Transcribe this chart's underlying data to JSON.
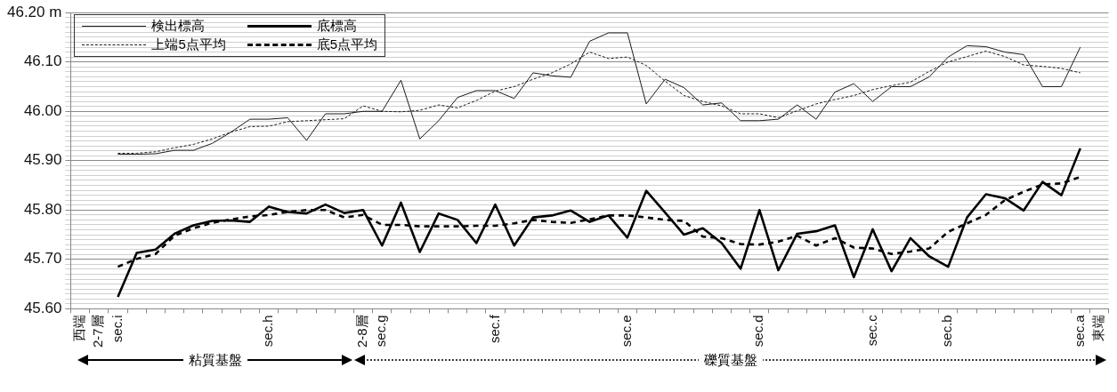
{
  "chart_data": {
    "type": "line",
    "categories": [
      "西端",
      "2-7層",
      "sec.i",
      null,
      null,
      null,
      null,
      null,
      null,
      null,
      "sec.h",
      null,
      null,
      null,
      null,
      "2-8層",
      "sec.g",
      null,
      null,
      null,
      null,
      null,
      "sec.f",
      null,
      null,
      null,
      null,
      null,
      null,
      "sec.e",
      null,
      null,
      null,
      null,
      null,
      null,
      "sec.d",
      null,
      null,
      null,
      null,
      null,
      "sec.c",
      null,
      null,
      null,
      "sec.b",
      null,
      null,
      null,
      null,
      null,
      null,
      "sec.a",
      "東端"
    ],
    "series": [
      {
        "name": "検出標高",
        "color": "#1a1a1a",
        "line_style": "solid",
        "values": [
          null,
          null,
          45.913,
          45.913,
          45.914,
          45.921,
          45.921,
          45.935,
          45.958,
          45.984,
          45.984,
          45.987,
          45.941,
          45.995,
          45.995,
          46.0,
          46.0,
          46.063,
          45.944,
          45.981,
          46.028,
          46.042,
          46.042,
          46.026,
          46.078,
          46.072,
          46.069,
          46.142,
          46.159,
          46.159,
          46.015,
          46.065,
          46.048,
          46.013,
          46.017,
          45.981,
          45.981,
          45.984,
          46.013,
          45.984,
          46.039,
          46.056,
          46.02,
          46.05,
          46.05,
          46.07,
          46.11,
          46.133,
          46.131,
          46.12,
          46.115,
          46.05,
          46.05,
          46.13,
          null
        ]
      },
      {
        "name": "底標高",
        "color": "#000000",
        "line_style": "solid",
        "values": [
          null,
          null,
          45.624,
          45.713,
          45.72,
          45.752,
          45.769,
          45.778,
          45.779,
          45.776,
          45.807,
          45.796,
          45.793,
          45.811,
          45.794,
          45.8,
          45.728,
          45.815,
          45.715,
          45.793,
          45.78,
          45.733,
          45.811,
          45.728,
          45.785,
          45.789,
          45.799,
          45.776,
          45.789,
          45.744,
          45.839,
          45.795,
          45.75,
          45.763,
          45.733,
          45.681,
          45.8,
          45.678,
          45.752,
          45.757,
          45.769,
          45.664,
          45.761,
          45.676,
          45.743,
          45.706,
          45.685,
          45.785,
          45.832,
          45.824,
          45.799,
          45.857,
          45.83,
          45.925,
          null
        ]
      },
      {
        "name": "上端5点平均",
        "color": "#1a1a1a",
        "line_style": "dashed",
        "values": [
          null,
          null,
          45.915,
          45.915,
          45.918,
          45.926,
          45.933,
          45.944,
          45.958,
          45.969,
          45.97,
          45.979,
          45.981,
          45.983,
          45.985,
          46.011,
          46.0,
          45.999,
          46.002,
          46.013,
          46.007,
          46.022,
          46.041,
          46.05,
          46.065,
          46.078,
          46.096,
          46.12,
          46.107,
          46.11,
          46.093,
          46.061,
          46.032,
          46.02,
          46.011,
          45.995,
          45.995,
          45.987,
          46.001,
          46.015,
          46.024,
          46.032,
          46.044,
          46.052,
          46.059,
          46.081,
          46.1,
          46.111,
          46.122,
          46.111,
          46.094,
          46.091,
          46.087,
          46.078,
          null
        ]
      },
      {
        "name": "底5点平均",
        "color": "#000000",
        "line_style": "dashed",
        "values": [
          null,
          null,
          45.685,
          45.701,
          45.711,
          45.748,
          45.763,
          45.774,
          45.781,
          45.787,
          45.79,
          45.796,
          45.8,
          45.8,
          45.785,
          45.79,
          45.77,
          45.77,
          45.767,
          45.767,
          45.767,
          45.768,
          45.768,
          45.773,
          45.78,
          45.776,
          45.774,
          45.781,
          45.789,
          45.789,
          45.785,
          45.78,
          45.778,
          45.746,
          45.743,
          45.731,
          45.73,
          45.736,
          45.748,
          45.728,
          45.743,
          45.724,
          45.722,
          45.711,
          45.716,
          45.722,
          45.756,
          45.773,
          45.79,
          45.82,
          45.837,
          45.852,
          45.854,
          45.867,
          null
        ]
      }
    ],
    "ylim": [
      45.6,
      46.2
    ],
    "yticks": [
      {
        "value": 45.6,
        "label": "45.60"
      },
      {
        "value": 45.61,
        "label": null
      },
      {
        "value": 45.62,
        "label": null
      },
      {
        "value": 45.63,
        "label": null
      },
      {
        "value": 45.64,
        "label": null
      },
      {
        "value": 45.65,
        "label": null
      },
      {
        "value": 45.66,
        "label": null
      },
      {
        "value": 45.67,
        "label": null
      },
      {
        "value": 45.68,
        "label": null
      },
      {
        "value": 45.69,
        "label": null
      },
      {
        "value": 45.7,
        "label": "45.70"
      },
      {
        "value": 45.71,
        "label": null
      },
      {
        "value": 45.72,
        "label": null
      },
      {
        "value": 45.73,
        "label": null
      },
      {
        "value": 45.74,
        "label": null
      },
      {
        "value": 45.75,
        "label": null
      },
      {
        "value": 45.76,
        "label": null
      },
      {
        "value": 45.77,
        "label": null
      },
      {
        "value": 45.78,
        "label": null
      },
      {
        "value": 45.79,
        "label": null
      },
      {
        "value": 45.8,
        "label": "45.80"
      },
      {
        "value": 45.81,
        "label": null
      },
      {
        "value": 45.82,
        "label": null
      },
      {
        "value": 45.83,
        "label": null
      },
      {
        "value": 45.84,
        "label": null
      },
      {
        "value": 45.85,
        "label": null
      },
      {
        "value": 45.86,
        "label": null
      },
      {
        "value": 45.87,
        "label": null
      },
      {
        "value": 45.88,
        "label": null
      },
      {
        "value": 45.89,
        "label": null
      },
      {
        "value": 45.9,
        "label": "45.90"
      },
      {
        "value": 45.91,
        "label": null
      },
      {
        "value": 45.92,
        "label": null
      },
      {
        "value": 45.93,
        "label": null
      },
      {
        "value": 45.94,
        "label": null
      },
      {
        "value": 45.95,
        "label": null
      },
      {
        "value": 45.96,
        "label": null
      },
      {
        "value": 45.97,
        "label": null
      },
      {
        "value": 45.98,
        "label": null
      },
      {
        "value": 45.99,
        "label": null
      },
      {
        "value": 46.0,
        "label": "46.00"
      },
      {
        "value": 46.01,
        "label": null
      },
      {
        "value": 46.02,
        "label": null
      },
      {
        "value": 46.03,
        "label": null
      },
      {
        "value": 46.04,
        "label": null
      },
      {
        "value": 46.05,
        "label": null
      },
      {
        "value": 46.06,
        "label": null
      },
      {
        "value": 46.07,
        "label": null
      },
      {
        "value": 46.08,
        "label": null
      },
      {
        "value": 46.09,
        "label": null
      },
      {
        "value": 46.1,
        "label": "46.10"
      },
      {
        "value": 46.11,
        "label": null
      },
      {
        "value": 46.12,
        "label": null
      },
      {
        "value": 46.13,
        "label": null
      },
      {
        "value": 46.14,
        "label": null
      },
      {
        "value": 46.15,
        "label": null
      },
      {
        "value": 46.16,
        "label": null
      },
      {
        "value": 46.17,
        "label": null
      },
      {
        "value": 46.18,
        "label": null
      },
      {
        "value": 46.19,
        "label": null
      },
      {
        "value": 46.2,
        "label": "46.20 m"
      }
    ],
    "grid": "y",
    "legend": "top left",
    "marker": "none",
    "annotations": [
      "粘質基盤",
      "礫質基盤"
    ]
  }
}
